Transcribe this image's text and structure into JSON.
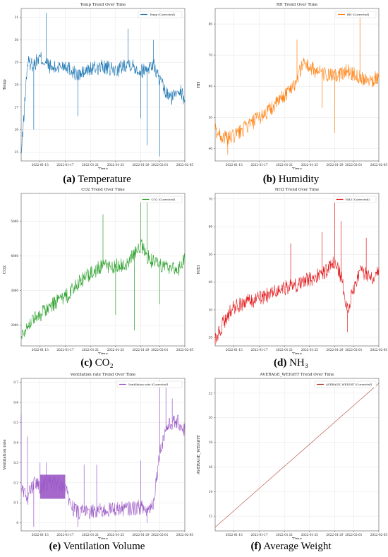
{
  "chart_data": [
    {
      "type": "line",
      "title": "Temp Trend Over Time",
      "xlabel": "Time",
      "ylabel": "Temp",
      "legend": "Temp (Corrected)",
      "legend_position": "top-right",
      "color": "#1f77b4",
      "grid": true,
      "x_ticks": [
        "2022-01-13",
        "2022-01-17",
        "2022-01-21",
        "2022-01-25",
        "2022-01-29",
        "2022-02-01",
        "2022-02-05"
      ],
      "y_ticks": [
        25,
        26,
        27,
        28,
        29,
        30,
        31
      ],
      "ylim": [
        24.6,
        31.4
      ],
      "x_range": [
        "2022-01-10",
        "2022-02-05"
      ],
      "x_keys": [
        "2022-01-10",
        "2022-01-11",
        "2022-01-12",
        "2022-01-13",
        "2022-01-15",
        "2022-01-17",
        "2022-01-19",
        "2022-01-21",
        "2022-01-23",
        "2022-01-25",
        "2022-01-27",
        "2022-01-29",
        "2022-01-31",
        "2022-02-01",
        "2022-02-02",
        "2022-02-03",
        "2022-02-04",
        "2022-02-05"
      ],
      "y_keys": [
        24.8,
        29.0,
        28.9,
        29.2,
        28.7,
        28.9,
        28.4,
        28.7,
        28.8,
        28.6,
        29.0,
        28.6,
        28.9,
        28.2,
        27.6,
        27.4,
        27.9,
        27.3
      ],
      "spikes": [
        {
          "x": "2022-01-14",
          "y": 31.2
        },
        {
          "x": "2022-01-12",
          "y": 26.0
        },
        {
          "x": "2022-01-27",
          "y": 30.5
        },
        {
          "x": "2022-01-30",
          "y": 25.3
        },
        {
          "x": "2022-01-31",
          "y": 30.0
        },
        {
          "x": "2022-02-01",
          "y": 24.8
        },
        {
          "x": "2022-01-29",
          "y": 26.5
        },
        {
          "x": "2022-01-19",
          "y": 26.6
        }
      ],
      "caption_letter": "(a)",
      "caption_text": " Temperature"
    },
    {
      "type": "line",
      "title": "RH Trend Over Time",
      "xlabel": "Time",
      "ylabel": "RH",
      "legend": "RH (Corrected)",
      "legend_position": "top-right",
      "color": "#ff7f0e",
      "grid": true,
      "x_ticks": [
        "2022-01-13",
        "2022-01-17",
        "2022-01-21",
        "2022-01-25",
        "2022-01-29",
        "2022-02-01",
        "2022-02-05"
      ],
      "y_ticks": [
        40,
        50,
        60,
        70,
        80
      ],
      "ylim": [
        36,
        85
      ],
      "x_range": [
        "2022-01-10",
        "2022-02-05"
      ],
      "x_keys": [
        "2022-01-10",
        "2022-01-11",
        "2022-01-12",
        "2022-01-13",
        "2022-01-15",
        "2022-01-17",
        "2022-01-19",
        "2022-01-21",
        "2022-01-23",
        "2022-01-24",
        "2022-01-25",
        "2022-01-27",
        "2022-01-29",
        "2022-01-31",
        "2022-02-02",
        "2022-02-04",
        "2022-02-05"
      ],
      "y_keys": [
        46,
        44,
        43,
        44,
        47,
        50,
        53,
        57,
        62,
        68,
        66,
        64,
        63,
        65,
        63,
        62,
        63
      ],
      "spikes": [
        {
          "x": "2022-01-12",
          "y": 38
        },
        {
          "x": "2022-01-29",
          "y": 45
        },
        {
          "x": "2022-02-02",
          "y": 84
        },
        {
          "x": "2022-01-23",
          "y": 75
        },
        {
          "x": "2022-01-27",
          "y": 53
        }
      ],
      "caption_letter": "(b)",
      "caption_text": " Humidity"
    },
    {
      "type": "line",
      "title": "CO2 Trend Over Time",
      "xlabel": "Time",
      "ylabel": "CO2",
      "legend": "CO2 (Corrected)",
      "legend_position": "top-right",
      "color": "#2ca02c",
      "grid": true,
      "x_ticks": [
        "2022-01-13",
        "2022-01-17",
        "2022-01-21",
        "2022-01-25",
        "2022-01-29",
        "2022-02-01",
        "2022-02-05"
      ],
      "y_ticks": [
        2000,
        3000,
        4000,
        5000
      ],
      "ylim": [
        1400,
        5800
      ],
      "x_range": [
        "2022-01-10",
        "2022-02-05"
      ],
      "x_keys": [
        "2022-01-10",
        "2022-01-11",
        "2022-01-12",
        "2022-01-13",
        "2022-01-15",
        "2022-01-17",
        "2022-01-19",
        "2022-01-21",
        "2022-01-23",
        "2022-01-25",
        "2022-01-27",
        "2022-01-28",
        "2022-01-29",
        "2022-01-30",
        "2022-01-31",
        "2022-02-02",
        "2022-02-04",
        "2022-02-05"
      ],
      "y_keys": [
        1700,
        2000,
        2200,
        2300,
        2600,
        2800,
        3200,
        3500,
        3700,
        3700,
        3800,
        4100,
        4300,
        4000,
        3800,
        3700,
        3600,
        3900
      ],
      "spikes": [
        {
          "x": "2022-01-23",
          "y": 5200
        },
        {
          "x": "2022-01-29",
          "y": 5650
        },
        {
          "x": "2022-01-30",
          "y": 5600
        },
        {
          "x": "2022-01-28",
          "y": 1850
        },
        {
          "x": "2022-01-25",
          "y": 2300
        },
        {
          "x": "2022-02-01",
          "y": 2600
        }
      ],
      "caption_letter": "(c)",
      "caption_text": " CO₂"
    },
    {
      "type": "line",
      "title": "NH3 Trend Over Time",
      "xlabel": "Time",
      "ylabel": "NH3",
      "legend": "NH3 (Corrected)",
      "legend_position": "top-right",
      "color": "#e41a1c",
      "grid": true,
      "x_ticks": [
        "2022-01-13",
        "2022-01-17",
        "2022-01-21",
        "2022-01-25",
        "2022-01-29",
        "2022-02-01",
        "2022-02-05"
      ],
      "y_ticks": [
        20,
        30,
        40,
        50,
        60,
        70
      ],
      "ylim": [
        17,
        72
      ],
      "x_range": [
        "2022-01-10",
        "2022-02-05"
      ],
      "x_keys": [
        "2022-01-10",
        "2022-01-11",
        "2022-01-12",
        "2022-01-13",
        "2022-01-15",
        "2022-01-17",
        "2022-01-19",
        "2022-01-21",
        "2022-01-23",
        "2022-01-25",
        "2022-01-27",
        "2022-01-29",
        "2022-01-30",
        "2022-01-31",
        "2022-02-01",
        "2022-02-02",
        "2022-02-04",
        "2022-02-05"
      ],
      "y_keys": [
        19,
        24,
        28,
        31,
        33,
        34,
        36,
        38,
        39,
        41,
        43,
        47,
        42,
        30,
        38,
        44,
        42,
        45
      ],
      "spikes": [
        {
          "x": "2022-01-29",
          "y": 71
        },
        {
          "x": "2022-01-30",
          "y": 62
        },
        {
          "x": "2022-01-31",
          "y": 22
        },
        {
          "x": "2022-01-27",
          "y": 58
        },
        {
          "x": "2022-02-03",
          "y": 56
        },
        {
          "x": "2022-01-22",
          "y": 54
        }
      ],
      "caption_letter": "(d)",
      "caption_text": " NH₃"
    },
    {
      "type": "line",
      "title": "Ventilation rate Trend Over Time",
      "xlabel": "Time",
      "ylabel": "Ventilation rate",
      "legend": "Ventilation rate (Corrected)",
      "legend_position": "top-right",
      "color": "#9b59c6",
      "grid": true,
      "x_ticks": [
        "2022-01-13",
        "2022-01-17",
        "2022-01-21",
        "2022-01-25",
        "2022-01-29",
        "2022-02-01",
        "2022-02-05"
      ],
      "y_ticks": [
        0.0,
        0.1,
        0.2,
        0.3,
        0.4,
        0.5,
        0.6,
        0.7
      ],
      "ylim": [
        -0.04,
        0.72
      ],
      "x_range": [
        "2022-01-10",
        "2022-02-05"
      ],
      "x_keys": [
        "2022-01-10",
        "2022-01-11",
        "2022-01-12",
        "2022-01-13",
        "2022-01-15",
        "2022-01-17",
        "2022-01-18",
        "2022-01-19",
        "2022-01-21",
        "2022-01-23",
        "2022-01-25",
        "2022-01-27",
        "2022-01-29",
        "2022-01-30",
        "2022-01-31",
        "2022-02-01",
        "2022-02-02",
        "2022-02-03",
        "2022-02-04",
        "2022-02-05"
      ],
      "y_keys": [
        0.18,
        0.12,
        0.2,
        0.18,
        0.2,
        0.18,
        0.08,
        0.05,
        0.06,
        0.06,
        0.07,
        0.07,
        0.08,
        0.06,
        0.1,
        0.35,
        0.47,
        0.5,
        0.5,
        0.46
      ],
      "spikes": [
        {
          "x": "2022-01-10",
          "y": 0.54
        },
        {
          "x": "2022-01-11",
          "y": 0.43
        },
        {
          "x": "2022-01-12",
          "y": -0.02
        },
        {
          "x": "2022-01-13",
          "y": 0.3
        },
        {
          "x": "2022-01-14",
          "y": 0.3
        },
        {
          "x": "2022-01-19",
          "y": -0.02
        },
        {
          "x": "2022-01-20",
          "y": 0.29
        },
        {
          "x": "2022-01-22",
          "y": 0.29
        },
        {
          "x": "2022-01-29",
          "y": 0.31
        },
        {
          "x": "2022-01-30",
          "y": 0.0
        },
        {
          "x": "2022-02-01",
          "y": 0.71
        },
        {
          "x": "2022-02-02",
          "y": 0.7
        },
        {
          "x": "2022-02-03",
          "y": 0.62
        }
      ],
      "band": {
        "from": "2022-01-13",
        "to": "2022-01-17",
        "low": 0.12,
        "high": 0.24
      },
      "caption_letter": "(e)",
      "caption_text": " Ventilation Volume"
    },
    {
      "type": "line",
      "title": "AVERAGE_WEIGHT Trend Over Time",
      "xlabel": "Time",
      "ylabel": "AVERAGE_WEIGHT",
      "legend": "AVERAGE_WEIGHT (Corrected)",
      "legend_position": "top-right",
      "color": "#b03a2e",
      "grid": true,
      "x_ticks": [
        "2022-01-13",
        "2022-01-17",
        "2022-01-21",
        "2022-01-25",
        "2022-01-29",
        "2022-02-01",
        "2022-02-05"
      ],
      "y_ticks": [
        12,
        14,
        16,
        18,
        20,
        22
      ],
      "ylim": [
        10.8,
        23.2
      ],
      "x_range": [
        "2022-01-10",
        "2022-02-05"
      ],
      "x_keys": [
        "2022-01-10",
        "2022-02-05"
      ],
      "y_keys": [
        11.1,
        22.8
      ],
      "spikes": [],
      "caption_letter": "(f)",
      "caption_text": " Average Weight"
    }
  ]
}
